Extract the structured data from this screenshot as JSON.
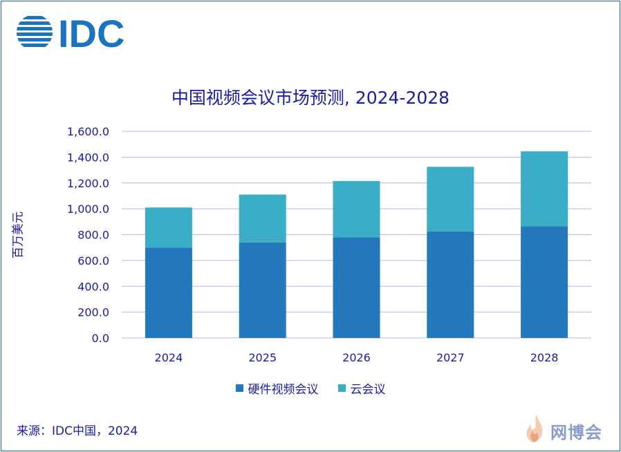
{
  "brand": {
    "logo_text": "IDC",
    "watermark_text": "网博会"
  },
  "chart_data": {
    "type": "bar",
    "stacked": true,
    "title": "中国视频会议市场预测, 2024-2028",
    "xlabel": "",
    "ylabel": "百万美元",
    "categories": [
      "2024",
      "2025",
      "2026",
      "2027",
      "2028"
    ],
    "series": [
      {
        "name": "硬件视频会议",
        "color": "#2478bc",
        "values": [
          700,
          740,
          780,
          825,
          865
        ]
      },
      {
        "name": "云会议",
        "color": "#3aaec7",
        "values": [
          310,
          370,
          435,
          500,
          580
        ]
      }
    ],
    "ylim": [
      0,
      1600
    ],
    "yticks": [
      "0.0",
      "200.0",
      "400.0",
      "600.0",
      "800.0",
      "1,000.0",
      "1,200.0",
      "1,400.0",
      "1,600.0"
    ],
    "grid": true,
    "legend_position": "bottom"
  },
  "source": "来源：IDC中国，2024"
}
